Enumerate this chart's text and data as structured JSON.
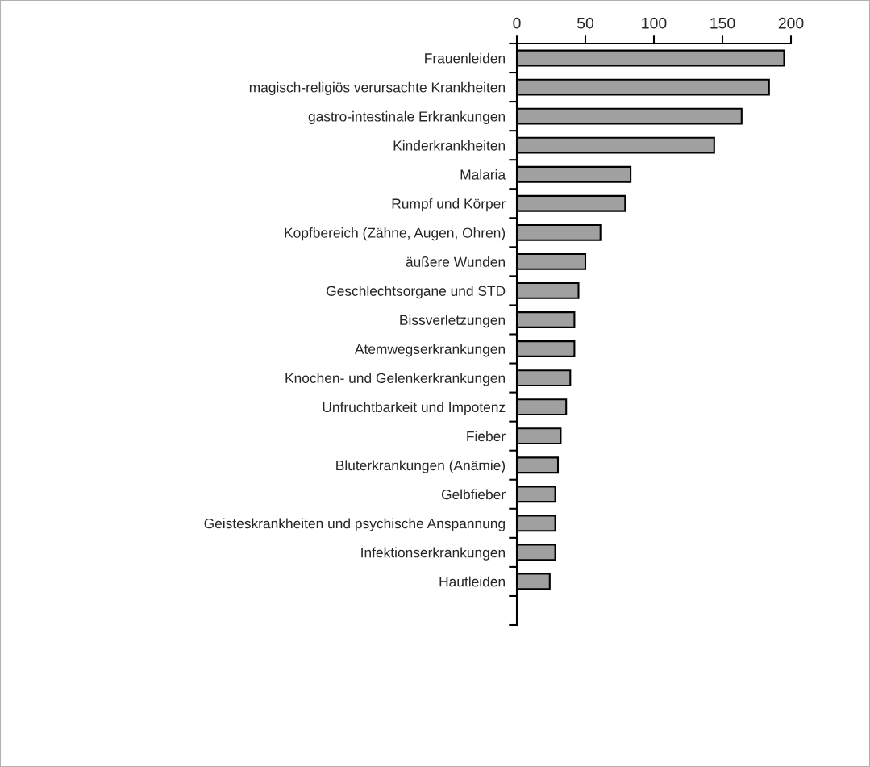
{
  "chart_data": {
    "type": "bar",
    "orientation": "horizontal",
    "categories": [
      "Frauenleiden",
      "magisch-religiös verursachte Krankheiten",
      "gastro-intestinale Erkrankungen",
      "Kinderkrankheiten",
      "Malaria",
      "Rumpf und Körper",
      "Kopfbereich (Zähne, Augen, Ohren)",
      "äußere Wunden",
      "Geschlechtsorgane und STD",
      "Bissverletzungen",
      "Atemwegserkrankungen",
      "Knochen- und Gelenkerkrankungen",
      "Unfruchtbarkeit und Impotenz",
      "Fieber",
      "Bluterkrankungen (Anämie)",
      "Gelbfieber",
      "Geisteskrankheiten und psychische Anspannung",
      "Infektionserkrankungen",
      "Hautleiden",
      null
    ],
    "values": [
      195,
      184,
      164,
      144,
      83,
      79,
      61,
      50,
      45,
      42,
      42,
      39,
      36,
      32,
      30,
      28,
      28,
      28,
      24,
      null
    ],
    "color": "#a0a0a0",
    "xlim": [
      0,
      200
    ],
    "xticks": [
      0,
      50,
      100,
      150,
      200
    ],
    "grid": false
  }
}
